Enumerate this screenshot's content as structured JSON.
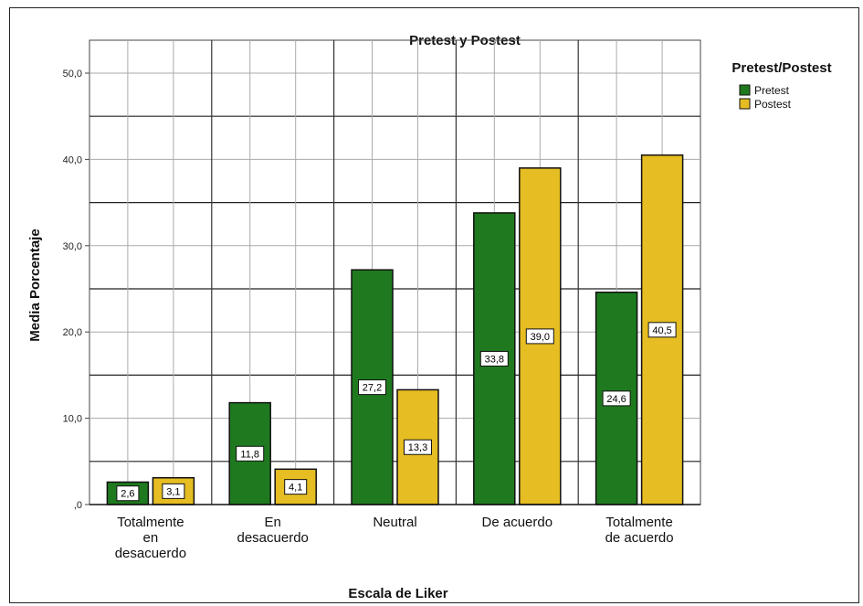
{
  "chart_data": {
    "type": "bar",
    "title": "Pretest y Postest",
    "xlabel": "Escala de Liker",
    "ylabel": "Media Porcentaje",
    "categories": [
      [
        "Totalmente",
        "en",
        "desacuerdo"
      ],
      [
        "En",
        "desacuerdo"
      ],
      [
        "Neutral"
      ],
      [
        "De acuerdo"
      ],
      [
        "Totalmente",
        "de acuerdo"
      ]
    ],
    "series": [
      {
        "name": "Pretest",
        "color": "#1f7a1f",
        "values": [
          2.6,
          11.8,
          27.2,
          33.8,
          24.6
        ],
        "labels": [
          "2,6",
          "11,8",
          "27,2",
          "33,8",
          "24,6"
        ]
      },
      {
        "name": "Postest",
        "color": "#e6bd22",
        "values": [
          3.1,
          4.1,
          13.3,
          39.0,
          40.5
        ],
        "labels": [
          "3,1",
          "4,1",
          "13,3",
          "39,0",
          "40,5"
        ]
      }
    ],
    "ylim": [
      0,
      50
    ],
    "yticks": [
      0,
      10,
      20,
      30,
      40,
      50
    ],
    "ytick_labels": [
      ",0",
      "10,0",
      "20,0",
      "30,0",
      "40,0",
      "50,0"
    ],
    "legend": {
      "title": "Pretest/Postest",
      "placement": "right"
    },
    "grid": true
  }
}
